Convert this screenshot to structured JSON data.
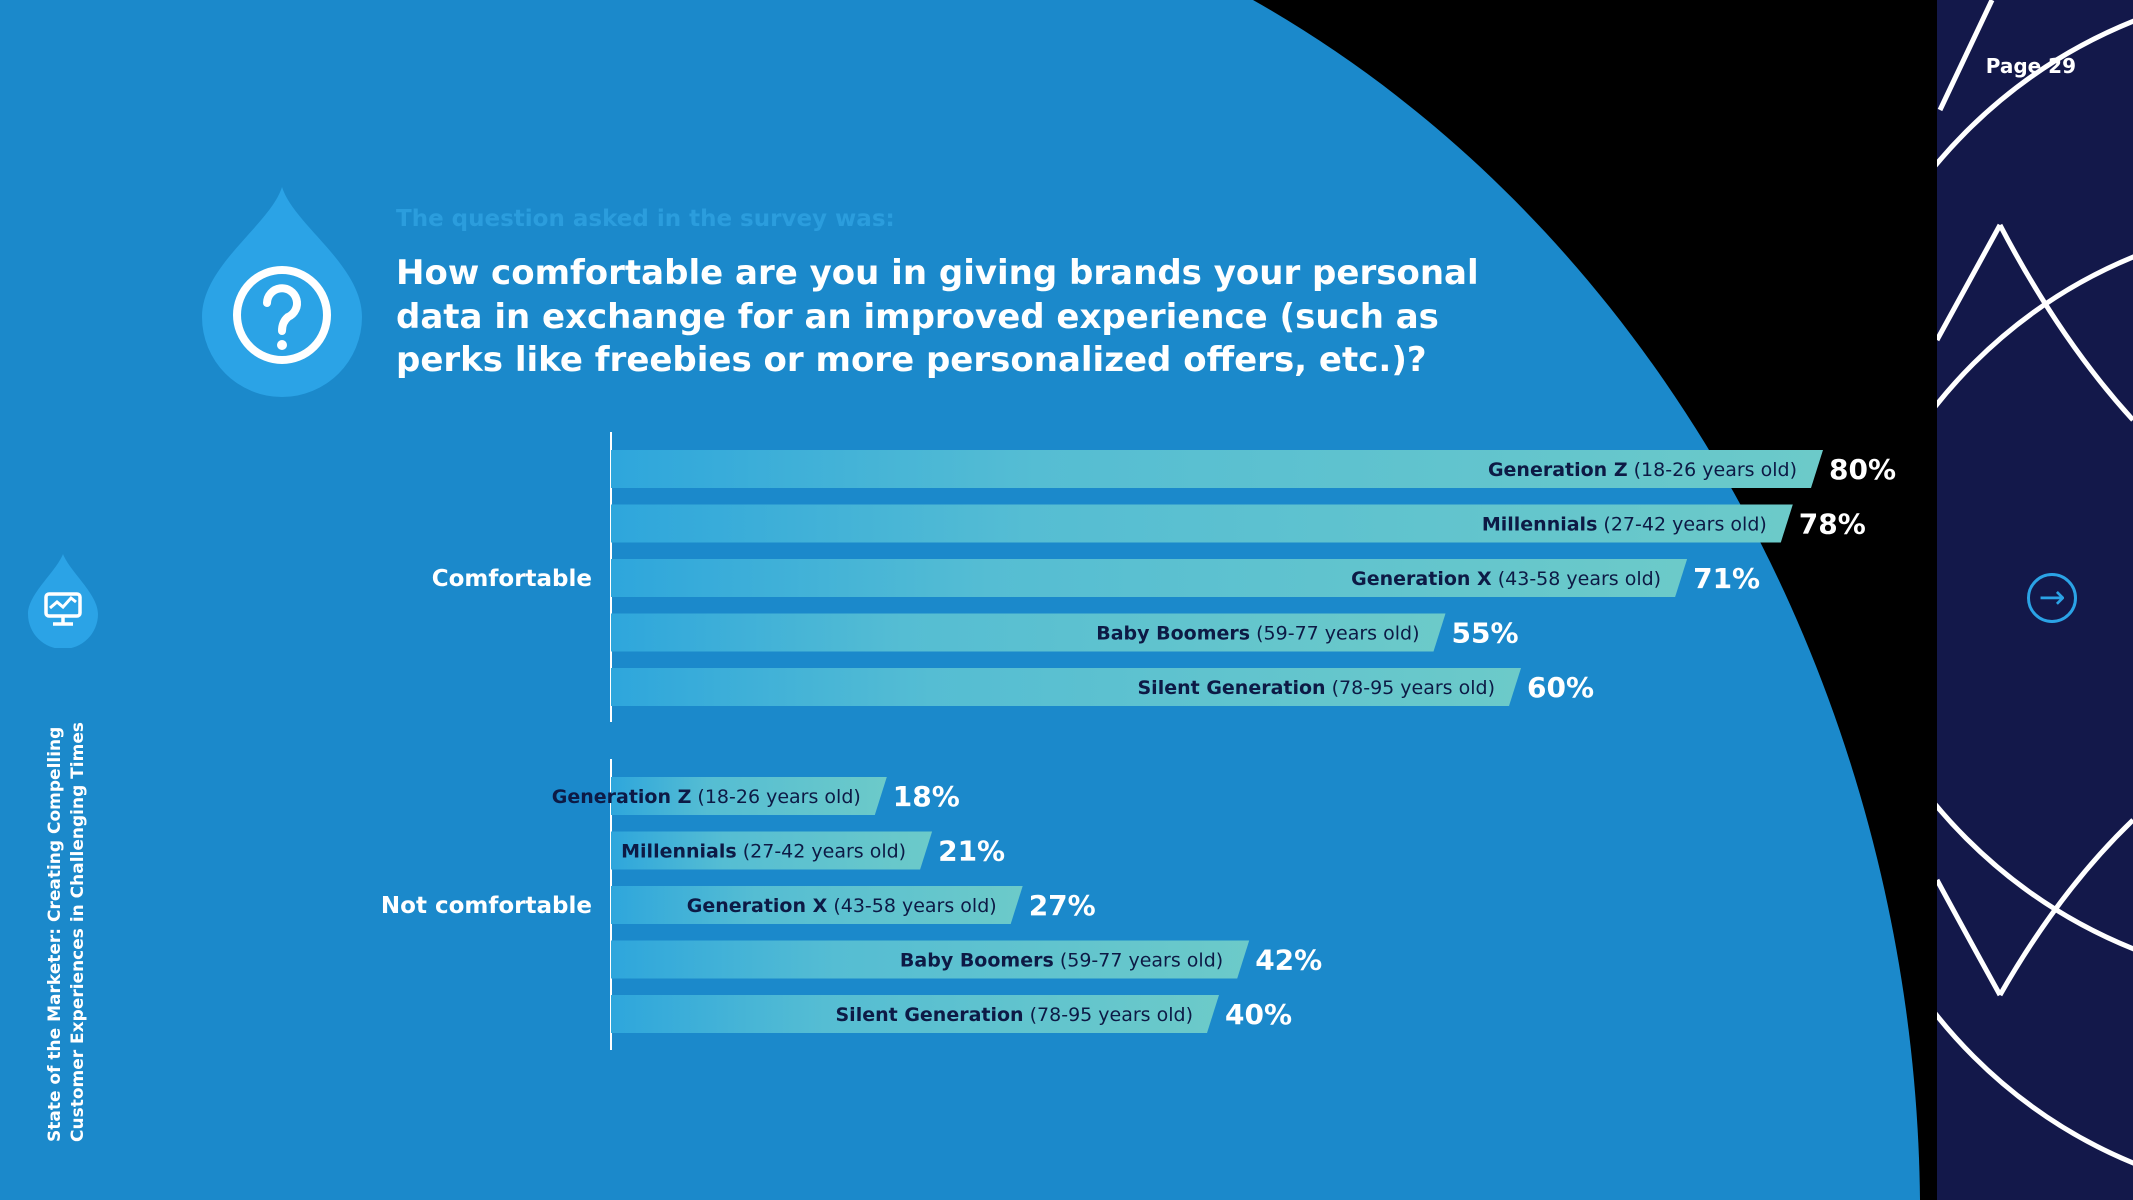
{
  "page": {
    "label": "Page 29"
  },
  "sidebar": {
    "title_line1": "State of the Marketer: Creating Compelling",
    "title_line2": "Customer Experiences in Challenging Times",
    "icon": "monitor-chart-icon"
  },
  "question": {
    "intro": "The question asked in the survey was:",
    "text": "How comfortable are you in giving brands your personal data in exchange for an improved experience (such as perks like freebies or more personalized offers, etc.)?",
    "icon": "question-mark-icon"
  },
  "navigation": {
    "next_icon": "arrow-right-circle-icon"
  },
  "colors": {
    "background_blue": "#1b89cb",
    "navy_panel": "#13184a",
    "bar_start": "#2ea6dc",
    "bar_end": "#6ccac9",
    "label_dark": "#0d1a45",
    "accent_blue": "#2ba3e6"
  },
  "chart_data": {
    "type": "bar",
    "orientation": "horizontal",
    "categories": [
      "Comfortable",
      "Not comfortable"
    ],
    "series": [
      {
        "name": "Generation Z",
        "range": "(18-26 years old)",
        "values": [
          80,
          18
        ]
      },
      {
        "name": "Millennials",
        "range": "(27-42 years old)",
        "values": [
          78,
          21
        ]
      },
      {
        "name": "Generation X",
        "range": "(43-58 years old)",
        "values": [
          71,
          27
        ]
      },
      {
        "name": "Baby Boomers",
        "range": "(59-77 years old)",
        "values": [
          55,
          42
        ]
      },
      {
        "name": "Silent Generation",
        "range": "(78-95 years old)",
        "values": [
          60,
          40
        ]
      }
    ],
    "value_labels": [
      [
        "80%",
        "18%"
      ],
      [
        "78%",
        "21%"
      ],
      [
        "71%",
        "27%"
      ],
      [
        "55%",
        "42%"
      ],
      [
        "60%",
        "40%"
      ]
    ],
    "unit": "%",
    "title": "",
    "xlabel": "",
    "ylabel": "",
    "grid": false,
    "legend": "none"
  }
}
